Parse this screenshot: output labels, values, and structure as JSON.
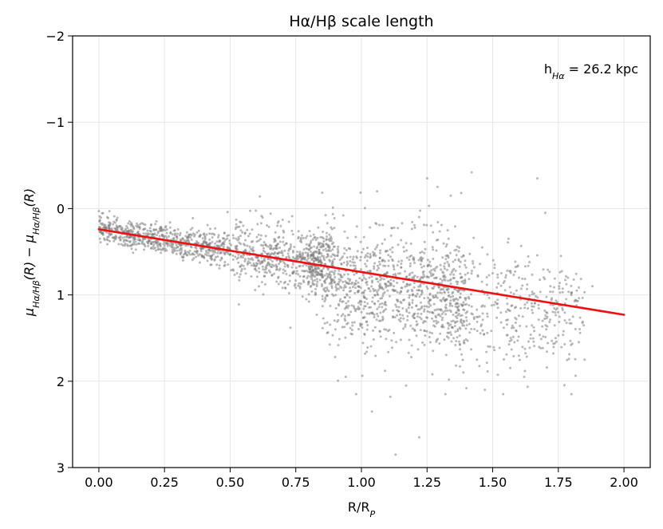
{
  "chart_data": {
    "type": "scatter",
    "title": "Hα/Hβ scale length",
    "xlabel": {
      "main": "R/R",
      "sub": "P"
    },
    "ylabel": {
      "p1_mu": "μ",
      "p1_sub": "Hα/Hβ",
      "p1_arg": "(R)",
      "minus": " − ",
      "p2_mu": "μ",
      "p2_sub": "Hα/Hβ",
      "p2_arg": "(R)"
    },
    "xlim": [
      -0.1,
      2.1
    ],
    "ylim": [
      3,
      -2
    ],
    "y_inverted": true,
    "grid": true,
    "x_ticks": [
      0.0,
      0.25,
      0.5,
      0.75,
      1.0,
      1.25,
      1.5,
      1.75,
      2.0
    ],
    "x_tick_labels": [
      "0.00",
      "0.25",
      "0.50",
      "0.75",
      "1.00",
      "1.25",
      "1.50",
      "1.75",
      "2.00"
    ],
    "y_ticks": [
      -2,
      -1,
      0,
      1,
      2,
      3
    ],
    "y_tick_labels": [
      "−2",
      "−1",
      "0",
      "1",
      "2",
      "3"
    ],
    "annotation": {
      "prefix": "h",
      "sub": "Hα",
      "suffix": " = 26.2 kpc",
      "position": "top-right"
    },
    "fit_line": {
      "x": [
        0.0,
        2.0
      ],
      "y": [
        0.24,
        1.23
      ],
      "color": "#ee1111"
    },
    "scatter_color": "#808080",
    "scatter": {
      "description_of_cloud": "approx 3000 grey points, dense band following the trend from R/R_P 0 to ~1.9",
      "points": [
        [
          0.0,
          0.03
        ],
        [
          0.04,
          0.03
        ],
        [
          0.05,
          0.25
        ],
        [
          0.07,
          0.22
        ],
        [
          0.09,
          0.28
        ],
        [
          0.11,
          0.27
        ],
        [
          0.13,
          0.3
        ],
        [
          0.15,
          0.33
        ],
        [
          0.17,
          0.29
        ],
        [
          0.19,
          0.38
        ],
        [
          0.21,
          0.42
        ],
        [
          0.22,
          0.36
        ],
        [
          0.24,
          0.48
        ],
        [
          0.26,
          0.41
        ],
        [
          0.28,
          0.5
        ],
        [
          0.3,
          0.45
        ],
        [
          0.31,
          0.38
        ],
        [
          0.33,
          0.52
        ],
        [
          0.35,
          0.44
        ],
        [
          0.37,
          0.56
        ],
        [
          0.39,
          0.47
        ],
        [
          0.41,
          0.41
        ],
        [
          0.43,
          0.58
        ],
        [
          0.44,
          0.49
        ],
        [
          0.46,
          0.37
        ],
        [
          0.48,
          0.62
        ],
        [
          0.49,
          0.04
        ],
        [
          0.5,
          0.53
        ],
        [
          0.52,
          0.44
        ],
        [
          0.54,
          0.67
        ],
        [
          0.55,
          0.2
        ],
        [
          0.57,
          0.58
        ],
        [
          0.59,
          0.49
        ],
        [
          0.6,
          0.72
        ],
        [
          0.62,
          0.63
        ],
        [
          0.63,
          0.39
        ],
        [
          0.65,
          0.55
        ],
        [
          0.66,
          0.77
        ],
        [
          0.68,
          0.2
        ],
        [
          0.69,
          0.61
        ],
        [
          0.7,
          0.13
        ],
        [
          0.71,
          0.85
        ],
        [
          0.72,
          0.66
        ],
        [
          0.73,
          1.38
        ],
        [
          0.74,
          0.49
        ],
        [
          0.75,
          0.92
        ],
        [
          0.76,
          0.58
        ],
        [
          0.77,
          0.36
        ],
        [
          0.78,
          0.79
        ],
        [
          0.79,
          1.05
        ],
        [
          0.8,
          0.64
        ],
        [
          0.81,
          0.45
        ],
        [
          0.82,
          0.88
        ],
        [
          0.83,
          1.23
        ],
        [
          0.84,
          0.52
        ],
        [
          0.85,
          0.73
        ],
        [
          0.86,
          0.95
        ],
        [
          0.87,
          1.32
        ],
        [
          0.88,
          0.61
        ],
        [
          0.89,
          0.82
        ],
        [
          0.9,
          1.72
        ],
        [
          0.91,
          0.47
        ],
        [
          0.92,
          1.05
        ],
        [
          0.93,
          0.7
        ],
        [
          0.94,
          1.95
        ],
        [
          0.95,
          0.87
        ],
        [
          0.96,
          1.45
        ],
        [
          0.97,
          0.56
        ],
        [
          0.98,
          2.15
        ],
        [
          0.99,
          0.95
        ],
        [
          1.0,
          1.2
        ],
        [
          1.01,
          0.33
        ],
        [
          1.02,
          1.66
        ],
        [
          1.03,
          0.8
        ],
        [
          1.04,
          2.35
        ],
        [
          1.05,
          1.1
        ],
        [
          1.06,
          -0.2
        ],
        [
          1.07,
          1.42
        ],
        [
          1.08,
          0.61
        ],
        [
          1.09,
          1.88
        ],
        [
          1.1,
          0.95
        ],
        [
          1.11,
          2.18
        ],
        [
          1.12,
          1.25
        ],
        [
          1.13,
          2.85
        ],
        [
          1.14,
          0.42
        ],
        [
          1.15,
          1.52
        ],
        [
          1.16,
          0.85
        ],
        [
          1.17,
          2.05
        ],
        [
          1.18,
          1.15
        ],
        [
          1.19,
          1.72
        ],
        [
          1.2,
          0.6
        ],
        [
          1.21,
          1.35
        ],
        [
          1.22,
          2.65
        ],
        [
          1.23,
          0.95
        ],
        [
          1.24,
          1.58
        ],
        [
          1.25,
          -0.35
        ],
        [
          1.26,
          1.2
        ],
        [
          1.27,
          1.92
        ],
        [
          1.28,
          0.72
        ],
        [
          1.29,
          -0.25
        ],
        [
          1.3,
          1.45
        ],
        [
          1.31,
          1.05
        ],
        [
          1.32,
          2.15
        ],
        [
          1.33,
          0.55
        ],
        [
          1.34,
          -0.15
        ],
        [
          1.35,
          1.3
        ],
        [
          1.36,
          1.82
        ],
        [
          1.37,
          0.92
        ],
        [
          1.38,
          -0.18
        ],
        [
          1.39,
          1.55
        ],
        [
          1.4,
          2.08
        ],
        [
          1.41,
          1.12
        ],
        [
          1.42,
          -0.42
        ],
        [
          1.43,
          0.68
        ],
        [
          1.44,
          1.75
        ],
        [
          1.45,
          1.25
        ],
        [
          1.46,
          0.45
        ],
        [
          1.47,
          2.1
        ],
        [
          1.48,
          1.0
        ],
        [
          1.49,
          1.6
        ],
        [
          1.5,
          0.75
        ],
        [
          1.52,
          1.15
        ],
        [
          1.54,
          2.15
        ],
        [
          1.56,
          0.35
        ],
        [
          1.58,
          1.38
        ],
        [
          1.6,
          0.8
        ],
        [
          1.62,
          1.95
        ],
        [
          1.64,
          0.62
        ],
        [
          1.66,
          1.1
        ],
        [
          1.67,
          -0.35
        ],
        [
          1.69,
          1.3
        ],
        [
          1.7,
          0.05
        ],
        [
          1.72,
          0.9
        ],
        [
          1.74,
          1.5
        ],
        [
          1.76,
          0.55
        ],
        [
          1.78,
          1.05
        ],
        [
          1.8,
          2.15
        ],
        [
          1.82,
          0.95
        ],
        [
          1.85,
          1.75
        ],
        [
          1.88,
          0.9
        ]
      ]
    }
  }
}
